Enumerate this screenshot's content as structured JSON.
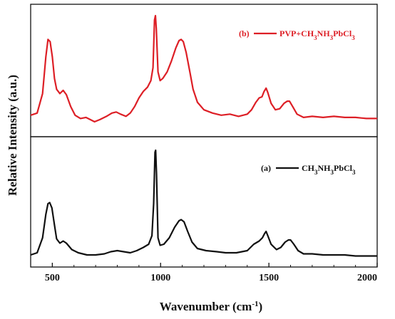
{
  "chart_data": {
    "type": "line",
    "ylabel": "Relative Intensity (a.u.)",
    "xlabel": {
      "main": "Wavenumber (cm",
      "sup": "-1",
      "close": ")"
    },
    "xlim": [
      400,
      2000
    ],
    "xticks": [
      500,
      1000,
      1500,
      2000
    ],
    "grid": false,
    "y_ticks_shown": false,
    "panels": [
      {
        "id": "b",
        "position": "top",
        "color": "#dd1f26",
        "legend": {
          "tag": "(b)",
          "parts": [
            {
              "t": "PVP+CH",
              "s": ""
            },
            {
              "t": "3",
              "s": "sub"
            },
            {
              "t": "NH",
              "s": ""
            },
            {
              "t": "3",
              "s": "sub"
            },
            {
              "t": "PbCl",
              "s": ""
            },
            {
              "t": "3",
              "s": "sub"
            }
          ]
        },
        "ylim": [
          0,
          1
        ],
        "points": [
          [
            400,
            0.08
          ],
          [
            430,
            0.1
          ],
          [
            455,
            0.28
          ],
          [
            470,
            0.62
          ],
          [
            480,
            0.78
          ],
          [
            490,
            0.76
          ],
          [
            500,
            0.62
          ],
          [
            510,
            0.42
          ],
          [
            520,
            0.32
          ],
          [
            535,
            0.28
          ],
          [
            550,
            0.31
          ],
          [
            565,
            0.27
          ],
          [
            585,
            0.16
          ],
          [
            605,
            0.08
          ],
          [
            630,
            0.05
          ],
          [
            655,
            0.06
          ],
          [
            675,
            0.04
          ],
          [
            695,
            0.02
          ],
          [
            720,
            0.04
          ],
          [
            750,
            0.07
          ],
          [
            775,
            0.1
          ],
          [
            795,
            0.11
          ],
          [
            815,
            0.09
          ],
          [
            840,
            0.07
          ],
          [
            860,
            0.1
          ],
          [
            880,
            0.16
          ],
          [
            900,
            0.24
          ],
          [
            920,
            0.3
          ],
          [
            940,
            0.34
          ],
          [
            955,
            0.4
          ],
          [
            965,
            0.52
          ],
          [
            972,
            0.96
          ],
          [
            976,
            1.0
          ],
          [
            980,
            0.88
          ],
          [
            988,
            0.48
          ],
          [
            998,
            0.4
          ],
          [
            1010,
            0.42
          ],
          [
            1030,
            0.48
          ],
          [
            1050,
            0.58
          ],
          [
            1070,
            0.7
          ],
          [
            1085,
            0.77
          ],
          [
            1095,
            0.78
          ],
          [
            1105,
            0.76
          ],
          [
            1118,
            0.66
          ],
          [
            1135,
            0.48
          ],
          [
            1150,
            0.32
          ],
          [
            1170,
            0.2
          ],
          [
            1200,
            0.13
          ],
          [
            1240,
            0.1
          ],
          [
            1280,
            0.08
          ],
          [
            1320,
            0.09
          ],
          [
            1360,
            0.07
          ],
          [
            1400,
            0.09
          ],
          [
            1420,
            0.13
          ],
          [
            1440,
            0.2
          ],
          [
            1455,
            0.24
          ],
          [
            1468,
            0.25
          ],
          [
            1478,
            0.3
          ],
          [
            1487,
            0.33
          ],
          [
            1495,
            0.29
          ],
          [
            1510,
            0.19
          ],
          [
            1530,
            0.13
          ],
          [
            1550,
            0.14
          ],
          [
            1570,
            0.19
          ],
          [
            1585,
            0.21
          ],
          [
            1595,
            0.21
          ],
          [
            1610,
            0.16
          ],
          [
            1630,
            0.09
          ],
          [
            1660,
            0.06
          ],
          [
            1700,
            0.07
          ],
          [
            1750,
            0.06
          ],
          [
            1800,
            0.07
          ],
          [
            1850,
            0.06
          ],
          [
            1900,
            0.06
          ],
          [
            1950,
            0.05
          ],
          [
            2000,
            0.05
          ]
        ]
      },
      {
        "id": "a",
        "position": "bottom",
        "color": "#111111",
        "legend": {
          "tag": "(a)",
          "parts": [
            {
              "t": "CH",
              "s": ""
            },
            {
              "t": "3",
              "s": "sub"
            },
            {
              "t": "NH",
              "s": ""
            },
            {
              "t": "3",
              "s": "sub"
            },
            {
              "t": "PbCl",
              "s": ""
            },
            {
              "t": "3",
              "s": "sub"
            }
          ]
        },
        "ylim": [
          0,
          1
        ],
        "points": [
          [
            400,
            0.02
          ],
          [
            430,
            0.04
          ],
          [
            455,
            0.18
          ],
          [
            470,
            0.4
          ],
          [
            480,
            0.5
          ],
          [
            488,
            0.51
          ],
          [
            498,
            0.46
          ],
          [
            510,
            0.3
          ],
          [
            520,
            0.17
          ],
          [
            535,
            0.13
          ],
          [
            550,
            0.15
          ],
          [
            565,
            0.13
          ],
          [
            590,
            0.07
          ],
          [
            620,
            0.04
          ],
          [
            660,
            0.02
          ],
          [
            700,
            0.02
          ],
          [
            740,
            0.03
          ],
          [
            770,
            0.05
          ],
          [
            800,
            0.06
          ],
          [
            830,
            0.05
          ],
          [
            860,
            0.04
          ],
          [
            890,
            0.06
          ],
          [
            920,
            0.09
          ],
          [
            945,
            0.12
          ],
          [
            960,
            0.2
          ],
          [
            968,
            0.5
          ],
          [
            974,
            0.98
          ],
          [
            977,
            1.0
          ],
          [
            981,
            0.78
          ],
          [
            988,
            0.18
          ],
          [
            998,
            0.11
          ],
          [
            1015,
            0.12
          ],
          [
            1040,
            0.18
          ],
          [
            1065,
            0.28
          ],
          [
            1085,
            0.34
          ],
          [
            1095,
            0.35
          ],
          [
            1108,
            0.33
          ],
          [
            1125,
            0.24
          ],
          [
            1145,
            0.14
          ],
          [
            1170,
            0.08
          ],
          [
            1210,
            0.06
          ],
          [
            1260,
            0.05
          ],
          [
            1300,
            0.04
          ],
          [
            1350,
            0.04
          ],
          [
            1400,
            0.06
          ],
          [
            1430,
            0.12
          ],
          [
            1455,
            0.15
          ],
          [
            1470,
            0.18
          ],
          [
            1480,
            0.22
          ],
          [
            1487,
            0.24
          ],
          [
            1495,
            0.2
          ],
          [
            1510,
            0.12
          ],
          [
            1535,
            0.07
          ],
          [
            1555,
            0.09
          ],
          [
            1575,
            0.14
          ],
          [
            1590,
            0.16
          ],
          [
            1600,
            0.16
          ],
          [
            1615,
            0.12
          ],
          [
            1635,
            0.06
          ],
          [
            1660,
            0.03
          ],
          [
            1700,
            0.03
          ],
          [
            1750,
            0.02
          ],
          [
            1800,
            0.02
          ],
          [
            1850,
            0.02
          ],
          [
            1900,
            0.01
          ],
          [
            1950,
            0.01
          ],
          [
            2000,
            0.01
          ]
        ]
      }
    ]
  }
}
